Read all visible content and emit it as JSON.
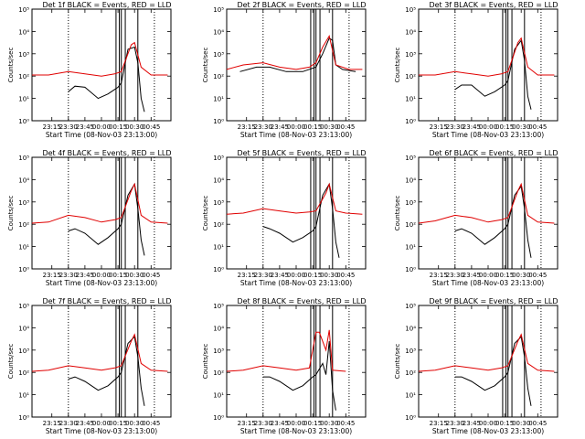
{
  "style": {
    "events_color": "#000000",
    "lld_color": "#e00000"
  },
  "chart_data": [
    {
      "type": "line",
      "title": "Det 1f BLACK = Events, RED = LLD",
      "ylabel": "Counts/sec",
      "xlabel": "Start Time (08-Nov-03 23:13:00)",
      "x_tick_labels": [
        "23:15",
        "23:30",
        "23:45",
        "00:00",
        "00:15",
        "00:30",
        "00:45"
      ],
      "y_tick_labels": [
        "10⁰",
        "10¹",
        "10²",
        "10³",
        "10⁴",
        "10⁵"
      ],
      "yscale": "log",
      "ylim_exp": [
        0,
        5
      ],
      "series": [
        {
          "name": "Events",
          "x": [
            23.5,
            23.6,
            23.75,
            23.95,
            24.1,
            24.25,
            24.3,
            24.4,
            24.5,
            24.55,
            24.6,
            24.65
          ],
          "y_exp": [
            1.3,
            1.55,
            1.5,
            1.0,
            1.2,
            1.5,
            1.7,
            3.2,
            3.3,
            2.6,
            1.0,
            0.4
          ]
        },
        {
          "name": "LLD",
          "x": [
            22.95,
            23.2,
            23.5,
            23.75,
            24.0,
            24.2,
            24.3,
            24.45,
            24.5,
            24.6,
            24.75,
            25.0
          ],
          "y_exp": [
            2.05,
            2.05,
            2.2,
            2.1,
            2.0,
            2.1,
            2.2,
            3.4,
            3.5,
            2.4,
            2.05,
            2.05
          ]
        }
      ],
      "dotted_x": [
        23.5,
        24.8
      ],
      "solid_x": [
        24.22,
        24.27,
        24.3,
        24.36,
        24.55
      ]
    },
    {
      "type": "line",
      "title": "Det 2f BLACK = Events, RED = LLD",
      "ylabel": "Counts/sec",
      "xlabel": "Start Time (08-Nov-03 23:13:00)",
      "x_tick_labels": [
        "23:15",
        "23:30",
        "23:45",
        "00:00",
        "00:15",
        "00:30",
        "00:45"
      ],
      "y_tick_labels": [
        "10⁰",
        "10¹",
        "10²",
        "10³",
        "10⁴",
        "10⁵"
      ],
      "yscale": "log",
      "ylim_exp": [
        0,
        5
      ],
      "series": [
        {
          "name": "Events",
          "x": [
            23.15,
            23.4,
            23.6,
            23.85,
            24.1,
            24.3,
            24.4,
            24.5,
            24.55,
            24.6,
            24.7,
            24.9
          ],
          "y_exp": [
            2.2,
            2.4,
            2.4,
            2.2,
            2.2,
            2.4,
            3.0,
            3.7,
            3.6,
            2.5,
            2.3,
            2.2
          ]
        },
        {
          "name": "LLD",
          "x": [
            22.95,
            23.2,
            23.5,
            23.75,
            24.0,
            24.2,
            24.3,
            24.4,
            24.5,
            24.6,
            24.8,
            25.0
          ],
          "y_exp": [
            2.3,
            2.5,
            2.6,
            2.4,
            2.3,
            2.4,
            2.6,
            3.3,
            3.8,
            2.5,
            2.3,
            2.3
          ]
        }
      ],
      "dotted_x": [
        23.5,
        24.8
      ],
      "solid_x": [
        24.22,
        24.27,
        24.3,
        24.36,
        24.55
      ]
    },
    {
      "type": "line",
      "title": "Det 3f BLACK = Events, RED = LLD",
      "ylabel": "Counts/sec",
      "xlabel": "Start Time (08-Nov-03 23:13:00)",
      "x_tick_labels": [
        "23:15",
        "23:30",
        "23:45",
        "00:00",
        "00:15",
        "00:30",
        "00:45"
      ],
      "y_tick_labels": [
        "10⁰",
        "10¹",
        "10²",
        "10³",
        "10⁴",
        "10⁵"
      ],
      "yscale": "log",
      "ylim_exp": [
        0,
        5
      ],
      "series": [
        {
          "name": "Events",
          "x": [
            23.5,
            23.6,
            23.75,
            23.95,
            24.1,
            24.25,
            24.3,
            24.4,
            24.5,
            24.55,
            24.6,
            24.65
          ],
          "y_exp": [
            1.4,
            1.6,
            1.6,
            1.1,
            1.3,
            1.6,
            1.8,
            3.2,
            3.6,
            2.7,
            1.1,
            0.5
          ]
        },
        {
          "name": "LLD",
          "x": [
            22.95,
            23.2,
            23.5,
            23.75,
            24.0,
            24.2,
            24.3,
            24.45,
            24.5,
            24.6,
            24.75,
            25.0
          ],
          "y_exp": [
            2.05,
            2.05,
            2.2,
            2.1,
            2.0,
            2.1,
            2.2,
            3.5,
            3.7,
            2.4,
            2.05,
            2.05
          ]
        }
      ],
      "dotted_x": [
        23.5,
        24.8
      ],
      "solid_x": [
        24.22,
        24.27,
        24.3,
        24.36,
        24.55
      ]
    },
    {
      "type": "line",
      "title": "Det 4f BLACK = Events, RED = LLD",
      "ylabel": "Counts/sec",
      "xlabel": "Start Time (08-Nov-03 23:13:00)",
      "x_tick_labels": [
        "23:15",
        "23:30",
        "23:45",
        "00:00",
        "00:15",
        "00:30",
        "00:45"
      ],
      "y_tick_labels": [
        "10⁰",
        "10¹",
        "10²",
        "10³",
        "10⁴",
        "10⁵"
      ],
      "yscale": "log",
      "ylim_exp": [
        0,
        5
      ],
      "series": [
        {
          "name": "Events",
          "x": [
            23.5,
            23.6,
            23.75,
            23.95,
            24.1,
            24.25,
            24.3,
            24.4,
            24.5,
            24.55,
            24.6,
            24.65
          ],
          "y_exp": [
            1.7,
            1.8,
            1.6,
            1.1,
            1.4,
            1.8,
            2.0,
            3.3,
            3.8,
            2.7,
            1.3,
            0.6
          ]
        },
        {
          "name": "LLD",
          "x": [
            22.95,
            23.2,
            23.5,
            23.75,
            24.0,
            24.2,
            24.3,
            24.45,
            24.5,
            24.6,
            24.75,
            25.0
          ],
          "y_exp": [
            2.05,
            2.1,
            2.4,
            2.3,
            2.1,
            2.2,
            2.3,
            3.5,
            3.8,
            2.4,
            2.1,
            2.05
          ]
        }
      ],
      "dotted_x": [
        23.5,
        24.8
      ],
      "solid_x": [
        24.22,
        24.27,
        24.3,
        24.36,
        24.55
      ]
    },
    {
      "type": "line",
      "title": "Det 5f BLACK = Events, RED = LLD",
      "ylabel": "Counts/sec",
      "xlabel": "Start Time (08-Nov-03 23:13:00)",
      "x_tick_labels": [
        "23:15",
        "23:30",
        "23:45",
        "00:00",
        "00:15",
        "00:30",
        "00:45"
      ],
      "y_tick_labels": [
        "10⁰",
        "10¹",
        "10²",
        "10³",
        "10⁴",
        "10⁵"
      ],
      "yscale": "log",
      "ylim_exp": [
        0,
        5
      ],
      "series": [
        {
          "name": "Events",
          "x": [
            23.5,
            23.6,
            23.75,
            23.95,
            24.1,
            24.25,
            24.3,
            24.4,
            24.5,
            24.55,
            24.6,
            24.65
          ],
          "y_exp": [
            1.9,
            1.8,
            1.6,
            1.2,
            1.4,
            1.7,
            1.9,
            3.3,
            3.8,
            2.7,
            1.2,
            0.5
          ]
        },
        {
          "name": "LLD",
          "x": [
            22.95,
            23.2,
            23.5,
            23.75,
            24.0,
            24.2,
            24.3,
            24.45,
            24.5,
            24.6,
            24.75,
            25.0
          ],
          "y_exp": [
            2.45,
            2.5,
            2.7,
            2.6,
            2.5,
            2.55,
            2.6,
            3.4,
            3.8,
            2.6,
            2.5,
            2.45
          ]
        }
      ],
      "dotted_x": [
        23.5,
        24.8
      ],
      "solid_x": [
        24.22,
        24.27,
        24.3,
        24.36,
        24.55
      ]
    },
    {
      "type": "line",
      "title": "Det 6f BLACK = Events, RED = LLD",
      "ylabel": "Counts/sec",
      "xlabel": "Start Time (08-Nov-03 23:13:00)",
      "x_tick_labels": [
        "23:15",
        "23:30",
        "23:45",
        "00:00",
        "00:15",
        "00:30",
        "00:45"
      ],
      "y_tick_labels": [
        "10⁰",
        "10¹",
        "10²",
        "10³",
        "10⁴",
        "10⁵"
      ],
      "yscale": "log",
      "ylim_exp": [
        0,
        5
      ],
      "series": [
        {
          "name": "Events",
          "x": [
            23.5,
            23.6,
            23.75,
            23.95,
            24.1,
            24.25,
            24.3,
            24.4,
            24.5,
            24.55,
            24.6,
            24.65
          ],
          "y_exp": [
            1.7,
            1.8,
            1.6,
            1.1,
            1.4,
            1.8,
            2.0,
            3.3,
            3.7,
            2.7,
            1.3,
            0.5
          ]
        },
        {
          "name": "LLD",
          "x": [
            22.95,
            23.2,
            23.5,
            23.75,
            24.0,
            24.2,
            24.3,
            24.45,
            24.5,
            24.6,
            24.75,
            25.0
          ],
          "y_exp": [
            2.05,
            2.15,
            2.4,
            2.3,
            2.1,
            2.2,
            2.3,
            3.5,
            3.8,
            2.4,
            2.1,
            2.05
          ]
        }
      ],
      "dotted_x": [
        23.5,
        24.8
      ],
      "solid_x": [
        24.22,
        24.27,
        24.3,
        24.36,
        24.55
      ]
    },
    {
      "type": "line",
      "title": "Det 7f BLACK = Events, RED = LLD",
      "ylabel": "Counts/sec",
      "xlabel": "Start Time (08-Nov-03 23:13:00)",
      "x_tick_labels": [
        "23:15",
        "23:30",
        "23:45",
        "00:00",
        "00:15",
        "00:30",
        "00:45"
      ],
      "y_tick_labels": [
        "10⁰",
        "10¹",
        "10²",
        "10³",
        "10⁴",
        "10⁵"
      ],
      "yscale": "log",
      "ylim_exp": [
        0,
        5
      ],
      "series": [
        {
          "name": "Events",
          "x": [
            23.5,
            23.6,
            23.75,
            23.95,
            24.1,
            24.25,
            24.3,
            24.4,
            24.5,
            24.55,
            24.6,
            24.65
          ],
          "y_exp": [
            1.7,
            1.8,
            1.6,
            1.2,
            1.4,
            1.8,
            2.0,
            3.3,
            3.6,
            2.7,
            1.3,
            0.5
          ]
        },
        {
          "name": "LLD",
          "x": [
            22.95,
            23.2,
            23.5,
            23.75,
            24.0,
            24.2,
            24.3,
            24.45,
            24.5,
            24.6,
            24.75,
            25.0
          ],
          "y_exp": [
            2.05,
            2.1,
            2.3,
            2.2,
            2.1,
            2.2,
            2.3,
            3.4,
            3.7,
            2.4,
            2.1,
            2.05
          ]
        }
      ],
      "dotted_x": [
        23.5,
        24.8
      ],
      "solid_x": [
        24.22,
        24.27,
        24.3,
        24.36,
        24.55
      ]
    },
    {
      "type": "line",
      "title": "Det 8f BLACK = Events, RED = LLD",
      "ylabel": "Counts/sec",
      "xlabel": "Start Time (08-Nov-03 23:13:00)",
      "x_tick_labels": [
        "23:15",
        "23:30",
        "23:45",
        "00:00",
        "00:15",
        "00:30",
        "00:45"
      ],
      "y_tick_labels": [
        "10⁰",
        "10¹",
        "10²",
        "10³",
        "10⁴",
        "10⁵"
      ],
      "yscale": "log",
      "ylim_exp": [
        0,
        5
      ],
      "series": [
        {
          "name": "Events",
          "x": [
            23.5,
            23.6,
            23.75,
            23.95,
            24.1,
            24.25,
            24.3,
            24.4,
            24.45,
            24.5,
            24.55,
            24.6
          ],
          "y_exp": [
            1.8,
            1.8,
            1.6,
            1.2,
            1.4,
            1.8,
            1.9,
            2.4,
            1.9,
            3.4,
            1.2,
            0.3
          ]
        },
        {
          "name": "LLD",
          "x": [
            22.95,
            23.2,
            23.5,
            23.75,
            24.0,
            24.2,
            24.3,
            24.35,
            24.45,
            24.5,
            24.55,
            24.75
          ],
          "y_exp": [
            2.05,
            2.1,
            2.3,
            2.2,
            2.1,
            2.2,
            3.8,
            3.8,
            3.0,
            3.9,
            2.1,
            2.05
          ]
        }
      ],
      "dotted_x": [
        23.5,
        24.8
      ],
      "solid_x": [
        24.22,
        24.27,
        24.3,
        24.36,
        24.55
      ]
    },
    {
      "type": "line",
      "title": "Det 9f BLACK = Events, RED = LLD",
      "ylabel": "Counts/sec",
      "xlabel": "Start Time (08-Nov-03 23:13:00)",
      "x_tick_labels": [
        "23:15",
        "23:30",
        "23:45",
        "00:00",
        "00:15",
        "00:30",
        "00:45"
      ],
      "y_tick_labels": [
        "10⁰",
        "10¹",
        "10²",
        "10³",
        "10⁴",
        "10⁵"
      ],
      "yscale": "log",
      "ylim_exp": [
        0,
        5
      ],
      "series": [
        {
          "name": "Events",
          "x": [
            23.5,
            23.6,
            23.75,
            23.95,
            24.1,
            24.25,
            24.3,
            24.4,
            24.5,
            24.55,
            24.6,
            24.65
          ],
          "y_exp": [
            1.8,
            1.8,
            1.6,
            1.2,
            1.4,
            1.8,
            2.0,
            3.3,
            3.6,
            2.7,
            1.3,
            0.5
          ]
        },
        {
          "name": "LLD",
          "x": [
            22.95,
            23.2,
            23.5,
            23.75,
            24.0,
            24.2,
            24.3,
            24.45,
            24.5,
            24.6,
            24.75,
            25.0
          ],
          "y_exp": [
            2.05,
            2.1,
            2.3,
            2.2,
            2.1,
            2.2,
            2.3,
            3.4,
            3.7,
            2.4,
            2.1,
            2.05
          ]
        }
      ],
      "dotted_x": [
        23.5,
        24.8
      ],
      "solid_x": [
        24.22,
        24.27,
        24.3,
        24.36,
        24.55
      ]
    }
  ]
}
